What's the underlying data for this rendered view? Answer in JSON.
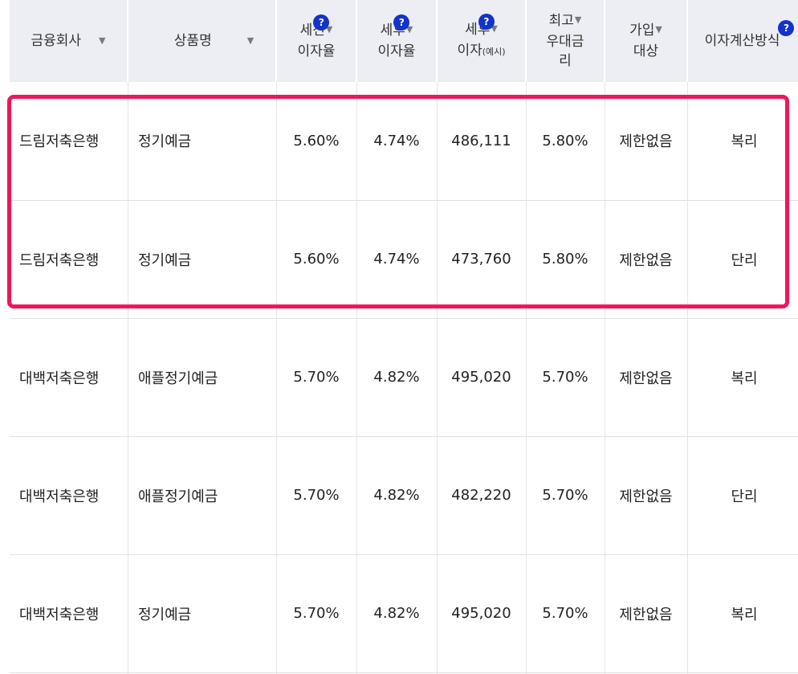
{
  "headers": {
    "company": {
      "label": "금융회사",
      "sort_icon": "▼"
    },
    "product": {
      "label": "상품명",
      "sort_icon": "▼"
    },
    "pretax_rate": {
      "line1": "세전",
      "line2": "이자율",
      "sort_icon": "▼",
      "help_icon": "?"
    },
    "posttax_rate": {
      "line1": "세후",
      "line2": "이자율",
      "sort_icon": "▼",
      "help_icon": "?"
    },
    "posttax_interest": {
      "line1": "세후",
      "line2": "이자",
      "line2_small": "(예시)",
      "sort_icon": "▼",
      "help_icon": "?"
    },
    "max_preferential": {
      "line1": "최고",
      "line2": "우대금",
      "line3": "리",
      "sort_icon": "▼"
    },
    "eligibility": {
      "line1": "가입",
      "line2": "대상",
      "sort_icon": "▼"
    },
    "interest_method": {
      "label": "이자계산방식",
      "help_icon": "?"
    }
  },
  "rows": [
    {
      "company": "드림저축은행",
      "product": "정기예금",
      "pretax_rate": "5.60%",
      "posttax_rate": "4.74%",
      "posttax_interest": "486,111",
      "max_preferential": "5.80%",
      "eligibility": "제한없음",
      "interest_method": "복리"
    },
    {
      "company": "드림저축은행",
      "product": "정기예금",
      "pretax_rate": "5.60%",
      "posttax_rate": "4.74%",
      "posttax_interest": "473,760",
      "max_preferential": "5.80%",
      "eligibility": "제한없음",
      "interest_method": "단리"
    },
    {
      "company": "대백저축은행",
      "product": "애플정기예금",
      "pretax_rate": "5.70%",
      "posttax_rate": "4.82%",
      "posttax_interest": "495,020",
      "max_preferential": "5.70%",
      "eligibility": "제한없음",
      "interest_method": "복리"
    },
    {
      "company": "대백저축은행",
      "product": "애플정기예금",
      "pretax_rate": "5.70%",
      "posttax_rate": "4.82%",
      "posttax_interest": "482,220",
      "max_preferential": "5.70%",
      "eligibility": "제한없음",
      "interest_method": "단리"
    },
    {
      "company": "대백저축은행",
      "product": "정기예금",
      "pretax_rate": "5.70%",
      "posttax_rate": "4.82%",
      "posttax_interest": "495,020",
      "max_preferential": "5.70%",
      "eligibility": "제한없음",
      "interest_method": "복리"
    }
  ],
  "colors": {
    "header_bg": "#eceef3",
    "help_icon_bg": "#1433c8",
    "highlight_border": "#f0165a",
    "row_border": "#e1e1e1"
  }
}
